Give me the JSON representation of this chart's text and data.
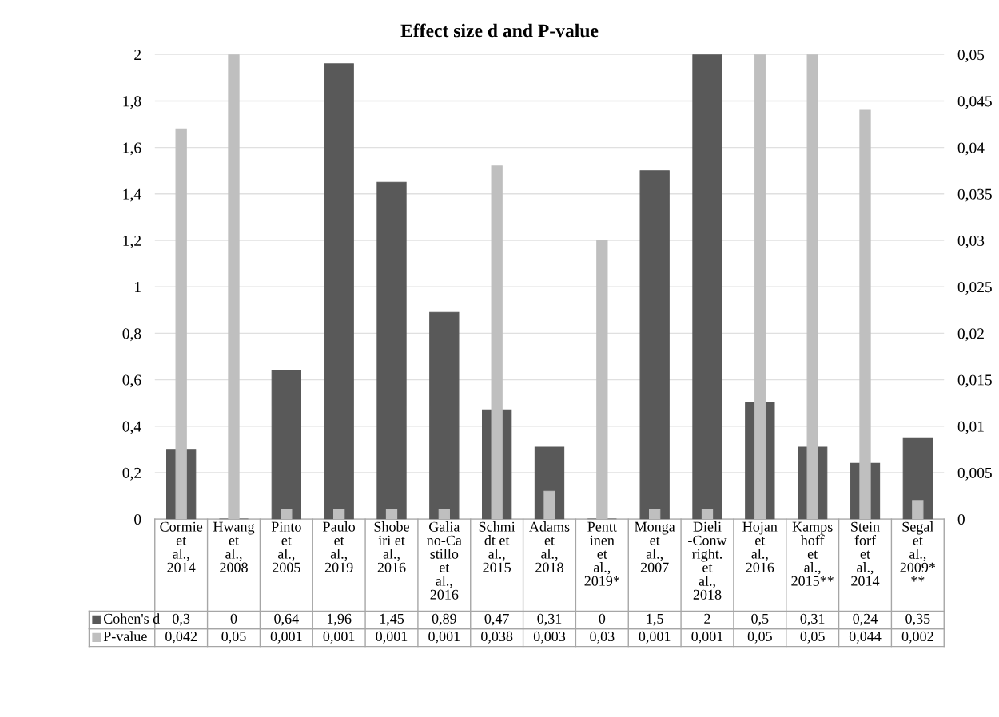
{
  "chart_data": {
    "type": "bar",
    "title": "Effect size d and P-value",
    "categories": [
      "Cormie et al., 2014",
      "Hwang et al., 2008",
      "Pinto et al., 2005",
      "Paulo et al., 2019",
      "Shobeiri et al., 2016",
      "Galiano-Castillo et al., 2016",
      "Schmidt et al., 2015",
      "Adams et al., 2018",
      "Penttinen et al., 2019*",
      "Monga et al., 2007",
      "Dieli-Conwright. et al., 2018",
      "Hojan et al., 2016",
      "Kampshoff et al., 2015**",
      "Steinforf et al., 2014",
      "Segal et al., 2009***"
    ],
    "series": [
      {
        "name": "Cohen's d",
        "color": "#595959",
        "values": [
          0.3,
          0,
          0.64,
          1.96,
          1.45,
          0.89,
          0.47,
          0.31,
          0,
          1.5,
          2,
          0.5,
          0.31,
          0.24,
          0.35
        ],
        "value_labels": [
          "0,3",
          "0",
          "0,64",
          "1,96",
          "1,45",
          "0,89",
          "0,47",
          "0,31",
          "0",
          "1,5",
          "2",
          "0,5",
          "0,31",
          "0,24",
          "0,35"
        ]
      },
      {
        "name": "P-value",
        "color": "#bfbfbf",
        "axis": "y2",
        "values": [
          0.042,
          0.05,
          0.001,
          0.001,
          0.001,
          0.001,
          0.038,
          0.003,
          0.03,
          0.001,
          0.001,
          0.05,
          0.05,
          0.044,
          0.002
        ],
        "value_labels": [
          "0,042",
          "0,05",
          "0,001",
          "0,001",
          "0,001",
          "0,001",
          "0,038",
          "0,003",
          "0,03",
          "0,001",
          "0,001",
          "0,05",
          "0,05",
          "0,044",
          "0,002"
        ]
      }
    ],
    "ylim": [
      0,
      2
    ],
    "yticks": [
      0,
      {
        "value": 0.2,
        "label": "0,2"
      },
      {
        "value": 0.4,
        "label": "0,4"
      },
      {
        "value": 0.6,
        "label": "0,6"
      },
      {
        "value": 0.8,
        "label": "0,8"
      },
      1,
      {
        "value": 1.2,
        "label": "1,2"
      },
      {
        "value": 1.4,
        "label": "1,4"
      },
      {
        "value": 1.6,
        "label": "1,6"
      },
      {
        "value": 1.8,
        "label": "1,8"
      },
      2
    ],
    "y2lim": [
      0,
      0.05
    ],
    "y2ticks": [
      0,
      {
        "value": 0.005,
        "label": "0,005"
      },
      {
        "value": 0.01,
        "label": "0,01"
      },
      {
        "value": 0.015,
        "label": "0,015"
      },
      {
        "value": 0.02,
        "label": "0,02"
      },
      {
        "value": 0.025,
        "label": "0,025"
      },
      {
        "value": 0.03,
        "label": "0,03"
      },
      {
        "value": 0.035,
        "label": "0,035"
      },
      {
        "value": 0.04,
        "label": "0,04"
      },
      {
        "value": 0.045,
        "label": "0,045"
      },
      {
        "value": 0.05,
        "label": "0,05"
      }
    ],
    "grid": "y",
    "legend": "bottom left"
  }
}
